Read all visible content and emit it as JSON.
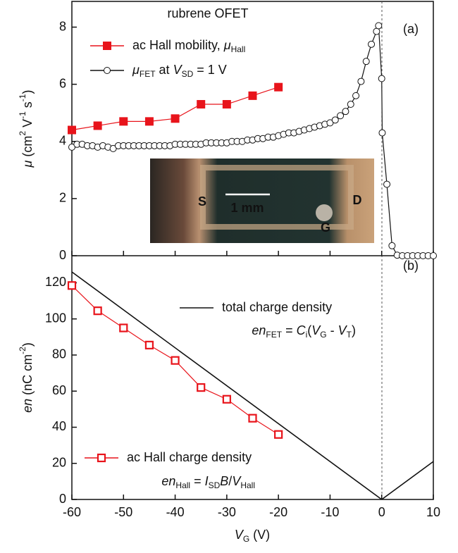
{
  "chart_data": [
    {
      "type": "line",
      "title": "rubrene OFET",
      "title_color": "#e8141b",
      "ylabel": [
        {
          "text": "μ",
          "style": "i"
        },
        {
          "text": "  (cm",
          "style": "n"
        },
        {
          "text": "2",
          "style": "sup"
        },
        {
          "text": " V",
          "style": "n"
        },
        {
          "text": "-1",
          "style": "sup"
        },
        {
          "text": " s",
          "style": "n"
        },
        {
          "text": "-1",
          "style": "sup"
        },
        {
          "text": ")",
          "style": "n"
        }
      ],
      "xlim": [
        -60,
        10
      ],
      "ylim": [
        0,
        8.9
      ],
      "yticks": [
        0,
        2,
        4,
        6,
        8
      ],
      "series": [
        {
          "name": [
            {
              "text": "ac Hall mobility, ",
              "style": "n"
            },
            {
              "text": "μ",
              "style": "i"
            },
            {
              "text": "Hall",
              "style": "sub"
            }
          ],
          "color": "#e8141b",
          "marker": "square-filled",
          "x": [
            -60,
            -55,
            -50,
            -45,
            -40,
            -35,
            -30,
            -25,
            -20
          ],
          "values": [
            4.4,
            4.55,
            4.7,
            4.7,
            4.8,
            5.3,
            5.3,
            5.6,
            5.9
          ]
        },
        {
          "name": [
            {
              "text": "μ",
              "style": "i"
            },
            {
              "text": "FET",
              "style": "sub"
            },
            {
              "text": " at ",
              "style": "n"
            },
            {
              "text": "V",
              "style": "i"
            },
            {
              "text": "SD",
              "style": "sub"
            },
            {
              "text": " = 1 V",
              "style": "n"
            }
          ],
          "color": "#111111",
          "marker": "circle-open",
          "x": [
            -60,
            -59,
            -58,
            -57,
            -56,
            -55,
            -54,
            -53,
            -52,
            -51,
            -50,
            -49,
            -48,
            -47,
            -46,
            -45,
            -44,
            -43,
            -42,
            -41,
            -40,
            -39,
            -38,
            -37,
            -36,
            -35,
            -34,
            -33,
            -32,
            -31,
            -30,
            -29,
            -28,
            -27,
            -26,
            -25,
            -24,
            -23,
            -22,
            -21,
            -20,
            -19,
            -18,
            -17,
            -16,
            -15,
            -14,
            -13,
            -12,
            -11,
            -10,
            -9,
            -8,
            -7,
            -6,
            -5,
            -4,
            -3,
            -2,
            -1,
            -0.6,
            0,
            0.1,
            1,
            2,
            3,
            4,
            5,
            6,
            7,
            8,
            9,
            10
          ],
          "values": [
            3.8,
            3.9,
            3.9,
            3.85,
            3.85,
            3.8,
            3.85,
            3.8,
            3.75,
            3.85,
            3.85,
            3.85,
            3.85,
            3.85,
            3.85,
            3.85,
            3.85,
            3.85,
            3.85,
            3.85,
            3.9,
            3.9,
            3.9,
            3.9,
            3.9,
            3.9,
            3.95,
            3.95,
            3.95,
            3.95,
            3.95,
            4.0,
            4.0,
            4.0,
            4.05,
            4.05,
            4.1,
            4.1,
            4.15,
            4.15,
            4.2,
            4.25,
            4.3,
            4.3,
            4.35,
            4.4,
            4.45,
            4.5,
            4.55,
            4.6,
            4.65,
            4.75,
            4.9,
            5.05,
            5.3,
            5.6,
            6.1,
            6.8,
            7.4,
            7.85,
            8.05,
            6.2,
            4.3,
            2.5,
            0.35,
            0.02,
            0,
            0,
            0,
            0,
            0,
            0,
            0
          ]
        }
      ],
      "annotations": [
        {
          "runs": [
            {
              "text": "(a)",
              "style": "n"
            }
          ]
        },
        {
          "runs": [
            {
              "text": "S",
              "style": "n"
            }
          ]
        },
        {
          "runs": [
            {
              "text": "1 mm",
              "style": "n"
            }
          ]
        },
        {
          "runs": [
            {
              "text": "D",
              "style": "n"
            }
          ]
        },
        {
          "runs": [
            {
              "text": "G",
              "style": "n"
            }
          ]
        }
      ]
    },
    {
      "type": "line",
      "ylabel": [
        {
          "text": "en",
          "style": "i"
        },
        {
          "text": "   (nC cm",
          "style": "n"
        },
        {
          "text": "-2",
          "style": "sup"
        },
        {
          "text": ")",
          "style": "n"
        }
      ],
      "xlabel": [
        {
          "text": "V",
          "style": "i"
        },
        {
          "text": "G",
          "style": "sub"
        },
        {
          "text": "  (V)",
          "style": "n"
        }
      ],
      "xlim": [
        -60,
        10
      ],
      "xticks": [
        -60,
        -50,
        -40,
        -30,
        -20,
        -10,
        0,
        10
      ],
      "ylim": [
        0,
        135
      ],
      "yticks": [
        0,
        20,
        40,
        60,
        80,
        100,
        120
      ],
      "series": [
        {
          "name": [
            {
              "text": "total charge density",
              "style": "n"
            }
          ],
          "color": "#111111",
          "marker": "none",
          "x": [
            -60,
            0,
            10
          ],
          "values": [
            126,
            0,
            21
          ]
        },
        {
          "name": [
            {
              "text": "ac Hall charge density",
              "style": "n"
            }
          ],
          "color": "#e8141b",
          "marker": "square-open",
          "x": [
            -60,
            -55,
            -50,
            -45,
            -40,
            -35,
            -30,
            -25,
            -20
          ],
          "values": [
            118.5,
            104.5,
            95,
            85.5,
            77,
            62,
            55.5,
            45,
            36
          ]
        }
      ],
      "annotations": [
        {
          "runs": [
            {
              "text": "(b)",
              "style": "n"
            }
          ]
        },
        {
          "runs": [
            {
              "text": "en",
              "style": "i"
            },
            {
              "text": "FET",
              "style": "sub"
            },
            {
              "text": " = ",
              "style": "n"
            },
            {
              "text": "C",
              "style": "i"
            },
            {
              "text": "i",
              "style": "sub"
            },
            {
              "text": "(",
              "style": "n"
            },
            {
              "text": "V",
              "style": "i"
            },
            {
              "text": "G",
              "style": "sub"
            },
            {
              "text": " - ",
              "style": "n"
            },
            {
              "text": "V",
              "style": "i"
            },
            {
              "text": "T",
              "style": "sub"
            },
            {
              "text": ")",
              "style": "n"
            }
          ]
        },
        {
          "runs": [
            {
              "text": "en",
              "style": "i"
            },
            {
              "text": "Hall",
              "style": "sub"
            },
            {
              "text": " = ",
              "style": "n"
            },
            {
              "text": "I",
              "style": "i"
            },
            {
              "text": "SD",
              "style": "sub"
            },
            {
              "text": "B",
              "style": "i"
            },
            {
              "text": "/",
              "style": "n"
            },
            {
              "text": "V",
              "style": "i"
            },
            {
              "text": "Hall",
              "style": "sub"
            }
          ]
        }
      ]
    }
  ]
}
